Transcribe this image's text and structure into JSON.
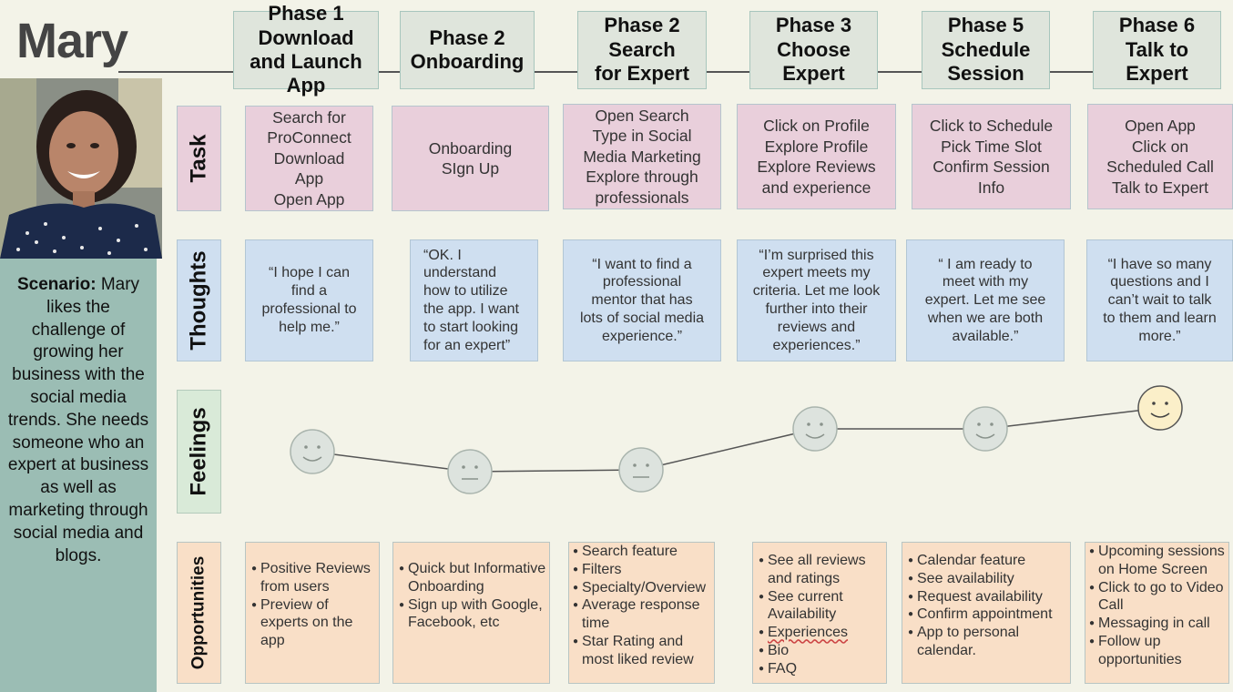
{
  "persona": {
    "name": "Mary",
    "scenario_label": "Scenario:",
    "scenario_text": " Mary likes the challenge of growing her business with the social media trends. She needs someone who an expert at business as well as marketing through social media and blogs."
  },
  "phases": [
    "Phase 1\nDownload\nand Launch\nApp",
    "Phase 2\nOnboarding",
    "Phase 2\nSearch\nfor Expert",
    "Phase 3\nChoose\nExpert",
    "Phase 5\nSchedule\nSession",
    "Phase 6\nTalk to\nExpert"
  ],
  "row_labels": {
    "task": "Task",
    "thoughts": "Thoughts",
    "feelings": "Feelings",
    "opportunities": "Opportunities"
  },
  "tasks": [
    "Search for\nProConnect\nDownload\nApp\nOpen App",
    "Onboarding\nSIgn Up",
    "Open Search\nType in Social\nMedia Marketing\nExplore through\nprofessionals",
    "Click on Profile\nExplore Profile\nExplore Reviews\nand experience",
    "Click to Schedule\nPick Time Slot\nConfirm Session\nInfo",
    "Open App\nClick on\nScheduled Call\nTalk to Expert"
  ],
  "thoughts": [
    "“I hope I can\nfind a\nprofessional to\nhelp me.”",
    "“OK. I\nunderstand\nhow to utilize\nthe app. I want\nto start looking\nfor an expert”",
    "“I want to find a\nprofessional\nmentor  that has\nlots of social media\nexperience.”",
    "“I’m surprised this\nexpert meets my\ncriteria. Let me look\nfurther into their\nreviews and\nexperiences.”",
    "“ I am ready to\nmeet with my\nexpert. Let me see\nwhen we are both\navailable.”",
    "“I have so many\nquestions and I\ncan’t wait to talk\nto them and learn\nmore.”"
  ],
  "feelings": [
    "happy",
    "neutral",
    "neutral",
    "happy",
    "happy",
    "happy"
  ],
  "opportunities": [
    [
      "Positive Reviews from users",
      "Preview of experts on the app"
    ],
    [
      "Quick but Informative Onboarding",
      "Sign up with Google, Facebook, etc"
    ],
    [
      "Search feature",
      "Filters",
      "Specialty/Overview",
      "Average response time",
      "Star Rating and most liked review"
    ],
    [
      "See all reviews and ratings",
      "See current Availability",
      "Experiences",
      " Bio",
      "FAQ"
    ],
    [
      "Calendar feature",
      "See availability",
      "Request availability",
      "Confirm appointment",
      "App to personal calendar."
    ],
    [
      "Upcoming sessions on Home Screen",
      "Click to go to Video Call",
      "Messaging in call",
      "Follow up opportunities"
    ]
  ],
  "colors": {
    "task": "#e9cfdb",
    "thoughts": "#cfdff0",
    "feelings_label": "#d9ead8",
    "opportunities": "#f9dfc7",
    "scenario": "#9bbdb4",
    "face_grey": "#dde3de",
    "face_yellow": "#fbefc9"
  }
}
